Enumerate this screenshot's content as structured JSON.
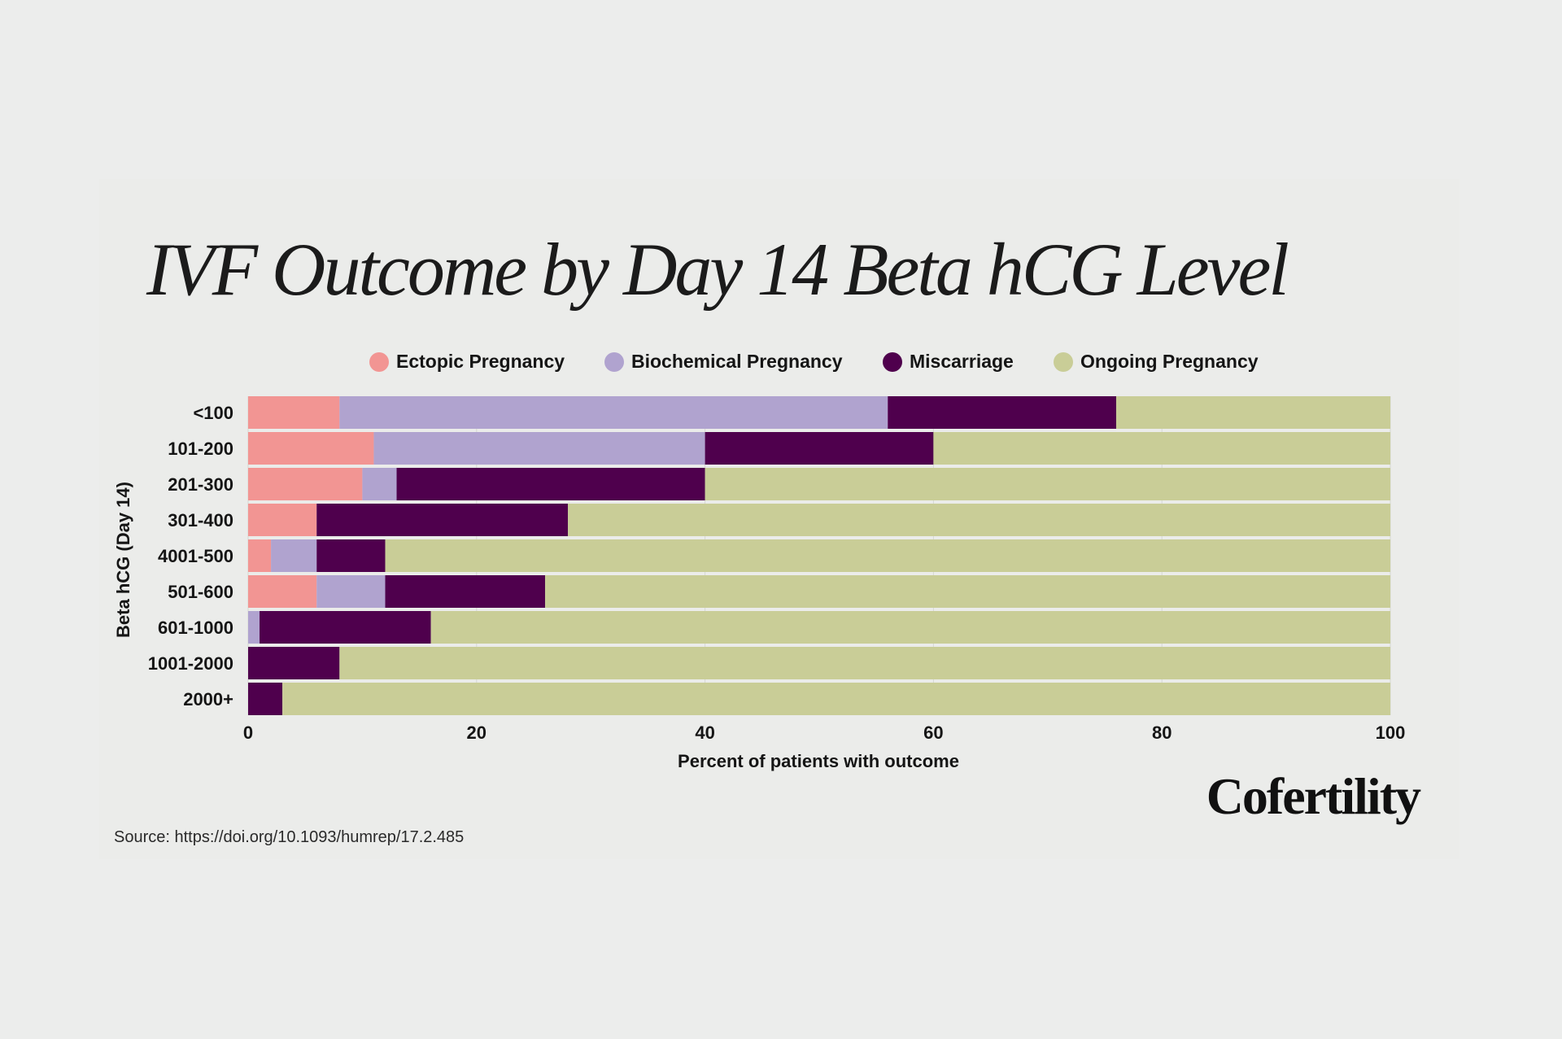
{
  "chart_data": {
    "type": "bar",
    "orientation": "horizontal",
    "stacked": true,
    "title": "IVF Outcome by Day 14 Beta hCG Level",
    "xlabel": "Percent of patients with outcome",
    "ylabel": "Beta hCG (Day 14)",
    "xlim": [
      0,
      100
    ],
    "xticks": [
      0,
      20,
      40,
      60,
      80,
      100
    ],
    "legend_position": "top-center",
    "categories": [
      "<100",
      "101-200",
      "201-300",
      "301-400",
      "4001-500",
      "501-600",
      "601-1000",
      "1001-2000",
      "2000+"
    ],
    "series": [
      {
        "name": "Ectopic Pregnancy",
        "color": "#f29593",
        "values": [
          8,
          11,
          10,
          6,
          2,
          6,
          0,
          0,
          0
        ]
      },
      {
        "name": "Biochemical Pregnancy",
        "color": "#b0a3cf",
        "values": [
          48,
          29,
          3,
          0,
          4,
          6,
          1,
          0,
          0
        ]
      },
      {
        "name": "Miscarriage",
        "color": "#4f004d",
        "values": [
          20,
          20,
          27,
          22,
          6,
          14,
          15,
          8,
          3
        ]
      },
      {
        "name": "Ongoing Pregnancy",
        "color": "#c9cd97",
        "values": [
          24,
          40,
          60,
          72,
          88,
          74,
          84,
          92,
          97
        ]
      }
    ]
  },
  "source": "Source: https://doi.org/10.1093/humrep/17.2.485",
  "brand": "Cofertility"
}
